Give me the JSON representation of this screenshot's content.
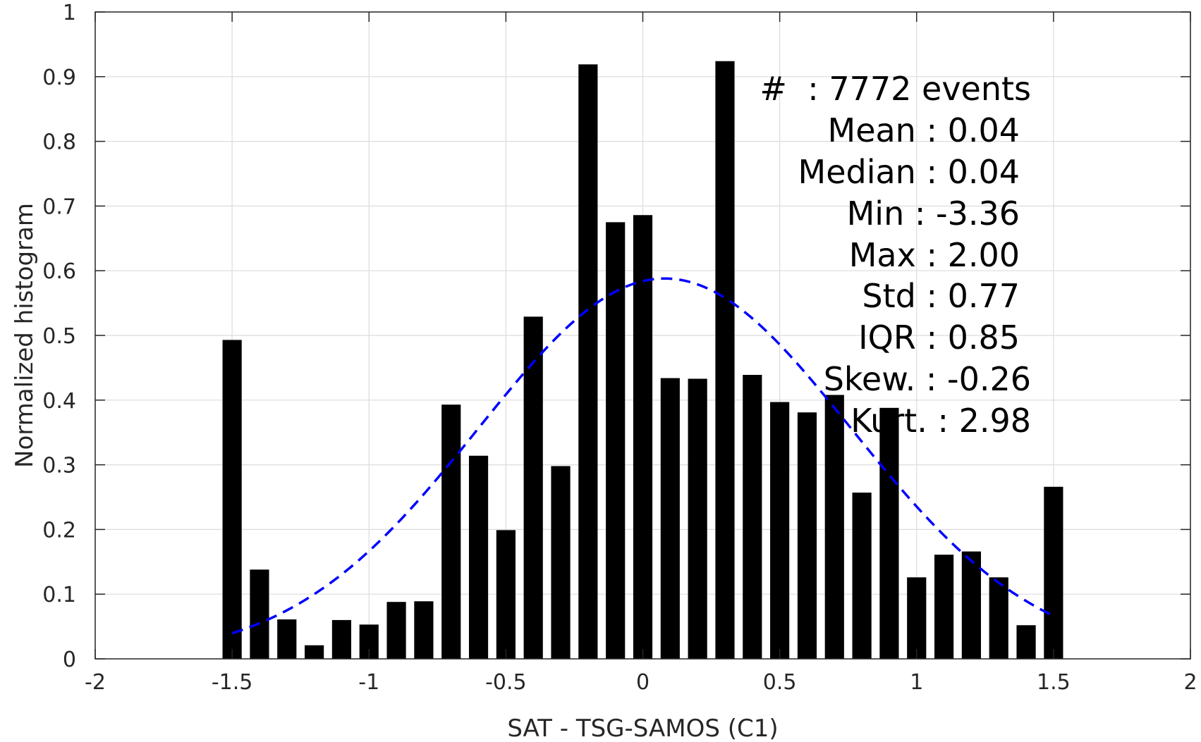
{
  "chart_data": {
    "type": "bar",
    "xlabel": "SAT - TSG-SAMOS (C1)",
    "ylabel": "Normalized histogram",
    "xlim": [
      -2,
      2
    ],
    "ylim": [
      0,
      1
    ],
    "grid": true,
    "x_ticks": [
      "-2",
      "-1.5",
      "-1",
      "-0.5",
      "0",
      "0.5",
      "1",
      "1.5",
      "2"
    ],
    "x_tick_values": [
      -2,
      -1.5,
      -1,
      -0.5,
      0,
      0.5,
      1,
      1.5,
      2
    ],
    "y_ticks": [
      "0",
      "0.1",
      "0.2",
      "0.3",
      "0.4",
      "0.5",
      "0.6",
      "0.7",
      "0.8",
      "0.9",
      "1"
    ],
    "y_tick_values": [
      0,
      0.1,
      0.2,
      0.3,
      0.4,
      0.5,
      0.6,
      0.7,
      0.8,
      0.9,
      1
    ],
    "bar_color": "#000000",
    "bar_width": 0.07,
    "bars": {
      "x": [
        -1.5,
        -1.4,
        -1.3,
        -1.2,
        -1.1,
        -1.0,
        -0.9,
        -0.8,
        -0.7,
        -0.6,
        -0.5,
        -0.4,
        -0.3,
        -0.2,
        -0.1,
        0.0,
        0.1,
        0.2,
        0.3,
        0.4,
        0.5,
        0.6,
        0.7,
        0.8,
        0.9,
        1.0,
        1.1,
        1.2,
        1.3,
        1.4,
        1.5
      ],
      "values": [
        0.493,
        0.138,
        0.061,
        0.021,
        0.06,
        0.053,
        0.088,
        0.089,
        0.393,
        0.314,
        0.199,
        0.529,
        0.298,
        0.919,
        0.675,
        0.686,
        0.434,
        0.433,
        0.924,
        0.439,
        0.397,
        0.381,
        0.408,
        0.257,
        0.388,
        0.126,
        0.161,
        0.166,
        0.126,
        0.052,
        0.266
      ]
    },
    "fit_curve": {
      "style": "dashed",
      "color": "#0000ff",
      "mean": 0.08,
      "std": 0.68,
      "peak": 0.588,
      "x_range": [
        -1.5,
        1.5
      ]
    },
    "stats": [
      "#  : 7772 events",
      "Mean : 0.04",
      "Median : 0.04",
      "Min : -3.36",
      "Max : 2.00",
      "Std : 0.77",
      "IQR : 0.85",
      "Skew. : -0.26",
      "Kurt. : 2.98"
    ]
  }
}
